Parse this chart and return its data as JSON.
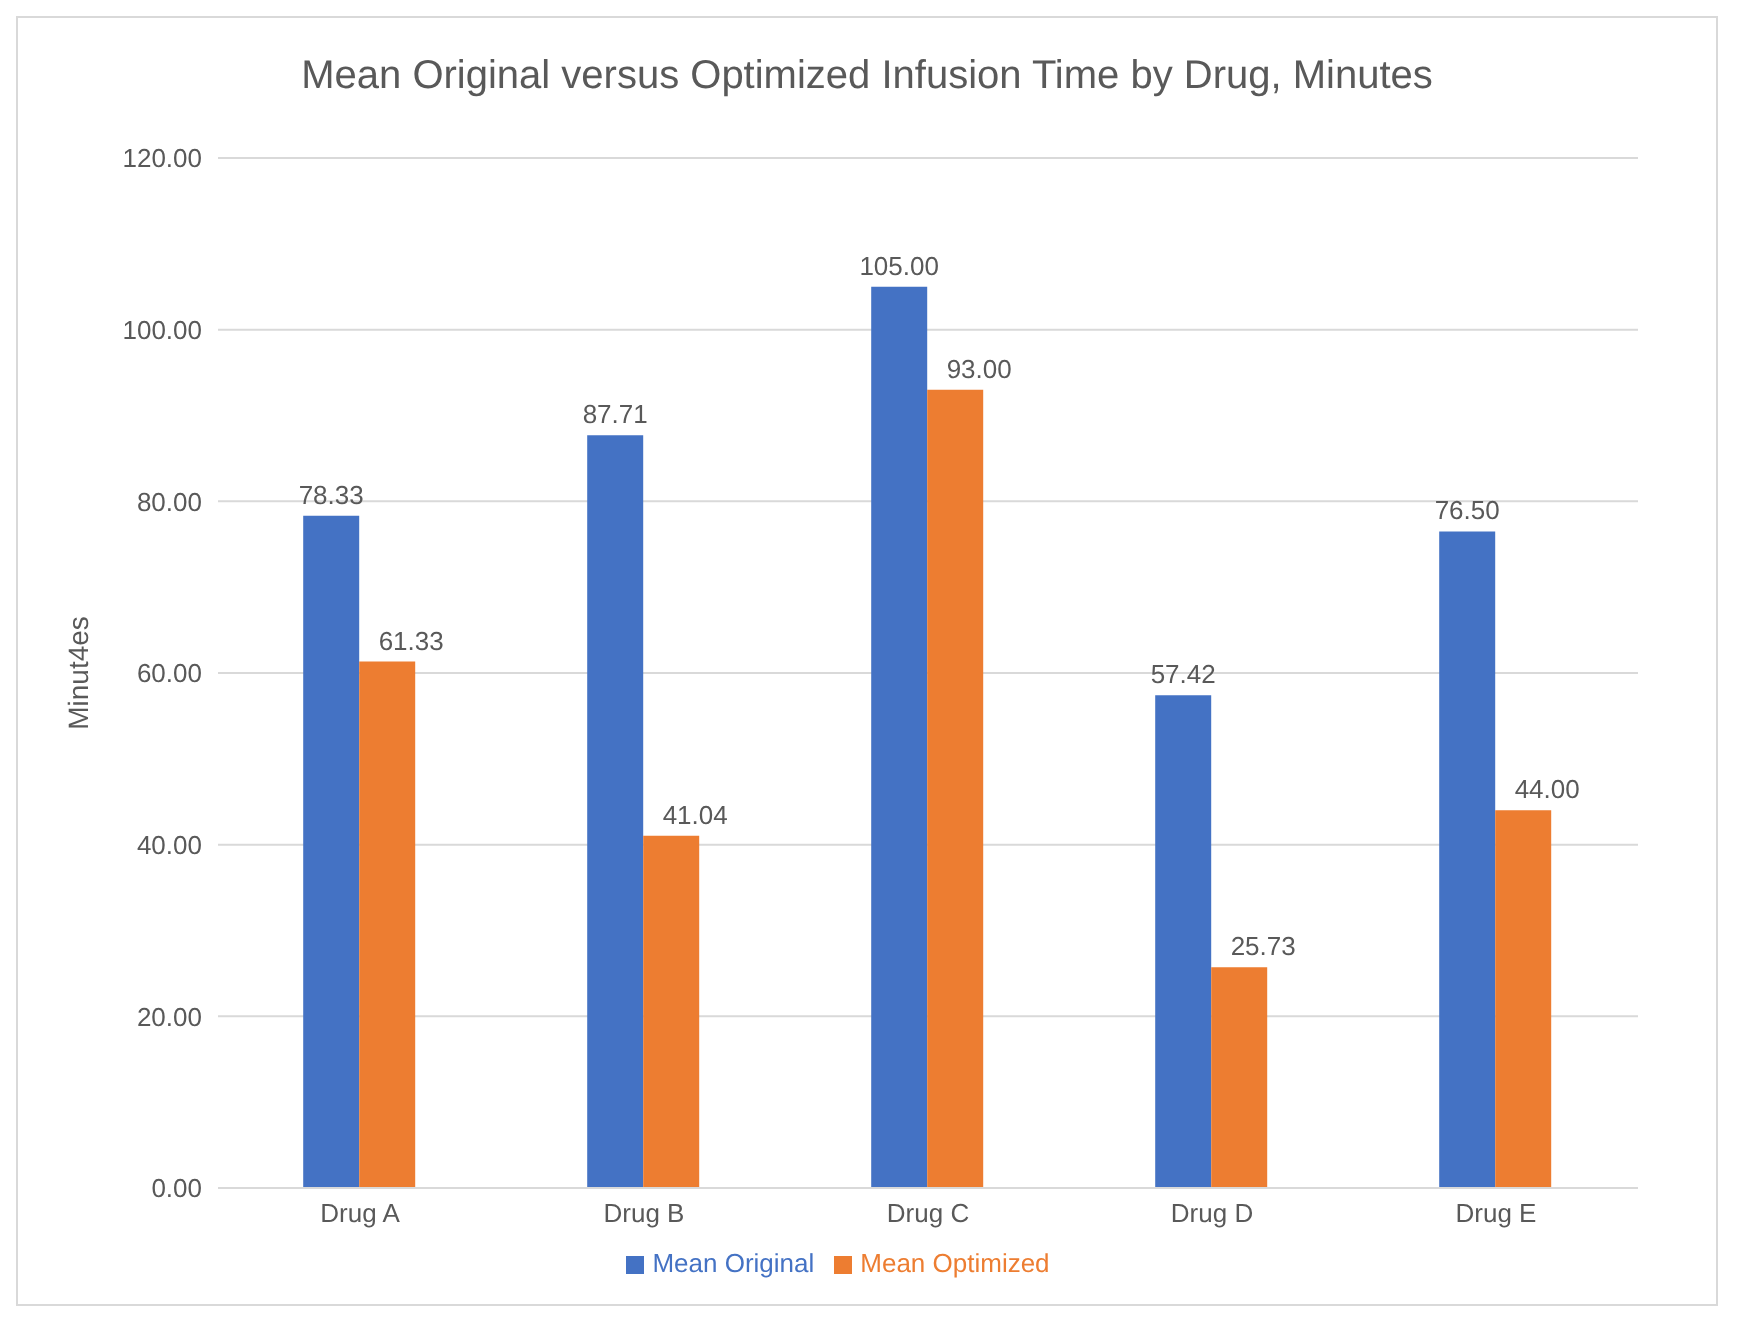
{
  "chart_data": {
    "type": "bar",
    "title": "Mean Original versus Optimized Infusion Time by Drug, Minutes",
    "ylabel": "Minut4es",
    "categories": [
      "Drug A",
      "Drug B",
      "Drug C",
      "Drug D",
      "Drug E"
    ],
    "series": [
      {
        "name": "Mean Original",
        "color": "#4472c4",
        "values": [
          78.33,
          87.71,
          105,
          57.42,
          76.5
        ],
        "value_labels": [
          "78.33",
          "87.71",
          "105.00",
          "57.42",
          "76.50"
        ]
      },
      {
        "name": "Mean Optimized",
        "color": "#ed7d31",
        "values": [
          61.33,
          41.04,
          93,
          25.73,
          44
        ],
        "value_labels": [
          "61.33",
          "41.04",
          "93.00",
          "25.73",
          "44.00"
        ]
      }
    ],
    "ylim": [
      0,
      120
    ],
    "yticks": [
      {
        "value": 0,
        "label": "0.00"
      },
      {
        "value": 20,
        "label": "20.00"
      },
      {
        "value": 40,
        "label": "40.00"
      },
      {
        "value": 60,
        "label": "60.00"
      },
      {
        "value": 80,
        "label": "80.00"
      },
      {
        "value": 100,
        "label": "100.00"
      },
      {
        "value": 120,
        "label": "120.00"
      }
    ],
    "grid": "y",
    "legend": "bottom"
  }
}
